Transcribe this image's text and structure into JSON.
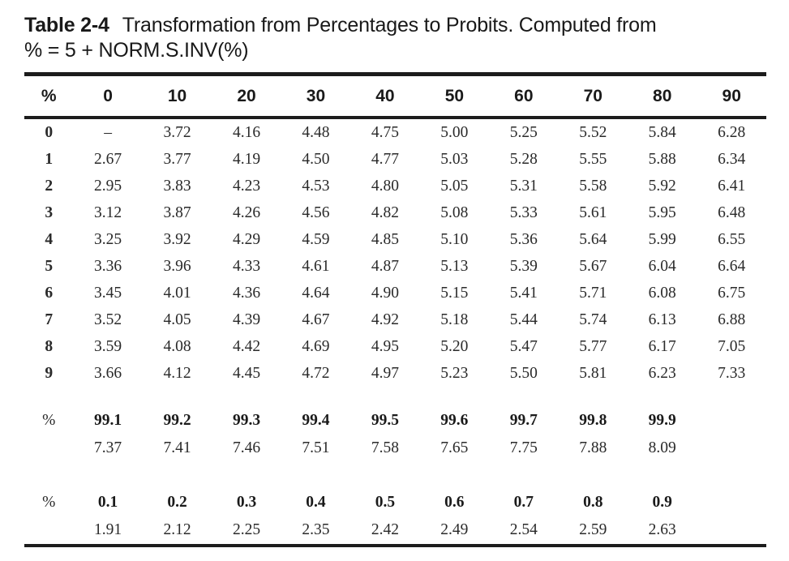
{
  "title": {
    "tag": "Table 2-4",
    "caption": "Transformation from Percentages to Probits. Computed from",
    "formula": "% = 5 + NORM.S.INV(%)"
  },
  "main_table": {
    "columns": [
      "%",
      "0",
      "10",
      "20",
      "30",
      "40",
      "50",
      "60",
      "70",
      "80",
      "90"
    ],
    "rows": [
      {
        "label": "0",
        "values": [
          "–",
          "3.72",
          "4.16",
          "4.48",
          "4.75",
          "5.00",
          "5.25",
          "5.52",
          "5.84",
          "6.28"
        ]
      },
      {
        "label": "1",
        "values": [
          "2.67",
          "3.77",
          "4.19",
          "4.50",
          "4.77",
          "5.03",
          "5.28",
          "5.55",
          "5.88",
          "6.34"
        ]
      },
      {
        "label": "2",
        "values": [
          "2.95",
          "3.83",
          "4.23",
          "4.53",
          "4.80",
          "5.05",
          "5.31",
          "5.58",
          "5.92",
          "6.41"
        ]
      },
      {
        "label": "3",
        "values": [
          "3.12",
          "3.87",
          "4.26",
          "4.56",
          "4.82",
          "5.08",
          "5.33",
          "5.61",
          "5.95",
          "6.48"
        ]
      },
      {
        "label": "4",
        "values": [
          "3.25",
          "3.92",
          "4.29",
          "4.59",
          "4.85",
          "5.10",
          "5.36",
          "5.64",
          "5.99",
          "6.55"
        ]
      },
      {
        "label": "5",
        "values": [
          "3.36",
          "3.96",
          "4.33",
          "4.61",
          "4.87",
          "5.13",
          "5.39",
          "5.67",
          "6.04",
          "6.64"
        ]
      },
      {
        "label": "6",
        "values": [
          "3.45",
          "4.01",
          "4.36",
          "4.64",
          "4.90",
          "5.15",
          "5.41",
          "5.71",
          "6.08",
          "6.75"
        ]
      },
      {
        "label": "7",
        "values": [
          "3.52",
          "4.05",
          "4.39",
          "4.67",
          "4.92",
          "5.18",
          "5.44",
          "5.74",
          "6.13",
          "6.88"
        ]
      },
      {
        "label": "8",
        "values": [
          "3.59",
          "4.08",
          "4.42",
          "4.69",
          "4.95",
          "5.20",
          "5.47",
          "5.77",
          "6.17",
          "7.05"
        ]
      },
      {
        "label": "9",
        "values": [
          "3.66",
          "4.12",
          "4.45",
          "4.72",
          "4.97",
          "5.23",
          "5.50",
          "5.81",
          "6.23",
          "7.33"
        ]
      }
    ],
    "high_section": {
      "label": "%",
      "percent_headers": [
        "99.1",
        "99.2",
        "99.3",
        "99.4",
        "99.5",
        "99.6",
        "99.7",
        "99.8",
        "99.9"
      ],
      "probit_values": [
        "7.37",
        "7.41",
        "7.46",
        "7.51",
        "7.58",
        "7.65",
        "7.75",
        "7.88",
        "8.09"
      ]
    },
    "low_section": {
      "label": "%",
      "percent_headers": [
        "0.1",
        "0.2",
        "0.3",
        "0.4",
        "0.5",
        "0.6",
        "0.7",
        "0.8",
        "0.9"
      ],
      "probit_values": [
        "1.91",
        "2.12",
        "2.25",
        "2.35",
        "2.42",
        "2.49",
        "2.54",
        "2.59",
        "2.63"
      ]
    }
  },
  "colors": {
    "background": "#ffffff",
    "text": "#1f1f1f",
    "rule": "#1c1c1c"
  }
}
